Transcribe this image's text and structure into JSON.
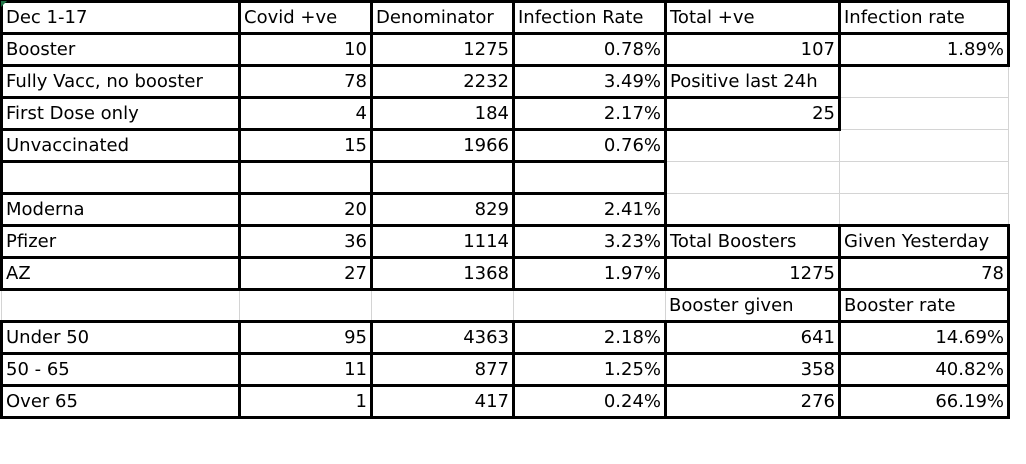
{
  "headers": {
    "period": "Dec 1-17",
    "covid_positive": "Covid +ve",
    "denominator": "Denominator",
    "infection_rate": "Infection Rate",
    "total_positive": "Total +ve",
    "overall_infection_rate": "Infection rate"
  },
  "rows": [
    {
      "label": "Booster",
      "covid": "10",
      "denom": "1275",
      "rate": "0.78%",
      "e": "107",
      "f": "1.89%"
    },
    {
      "label": "Fully Vacc, no booster",
      "covid": "78",
      "denom": "2232",
      "rate": "3.49%",
      "e": "Positive last 24h",
      "f": ""
    },
    {
      "label": "First Dose only",
      "covid": "4",
      "denom": "184",
      "rate": "2.17%",
      "e": "25",
      "f": ""
    },
    {
      "label": "Unvaccinated",
      "covid": "15",
      "denom": "1966",
      "rate": "0.76%",
      "e": "",
      "f": ""
    },
    {
      "label": "",
      "covid": "",
      "denom": "",
      "rate": "",
      "e": "",
      "f": ""
    },
    {
      "label": "Moderna",
      "covid": "20",
      "denom": "829",
      "rate": "2.41%",
      "e": "",
      "f": ""
    },
    {
      "label": "Pfizer",
      "covid": "36",
      "denom": "1114",
      "rate": "3.23%",
      "e": "Total Boosters",
      "f": "Given Yesterday"
    },
    {
      "label": "AZ",
      "covid": "27",
      "denom": "1368",
      "rate": "1.97%",
      "e": "1275",
      "f": "78"
    },
    {
      "label": "",
      "covid": "",
      "denom": "",
      "rate": "",
      "e": "Booster given",
      "f": "Booster rate"
    },
    {
      "label": "Under 50",
      "covid": "95",
      "denom": "4363",
      "rate": "2.18%",
      "e": "641",
      "f": "14.69%"
    },
    {
      "label": "50 - 65",
      "covid": "11",
      "denom": "877",
      "rate": "1.25%",
      "e": "358",
      "f": "40.82%"
    },
    {
      "label": "Over 65",
      "covid": "1",
      "denom": "417",
      "rate": "0.24%",
      "e": "276",
      "f": "66.19%"
    }
  ]
}
